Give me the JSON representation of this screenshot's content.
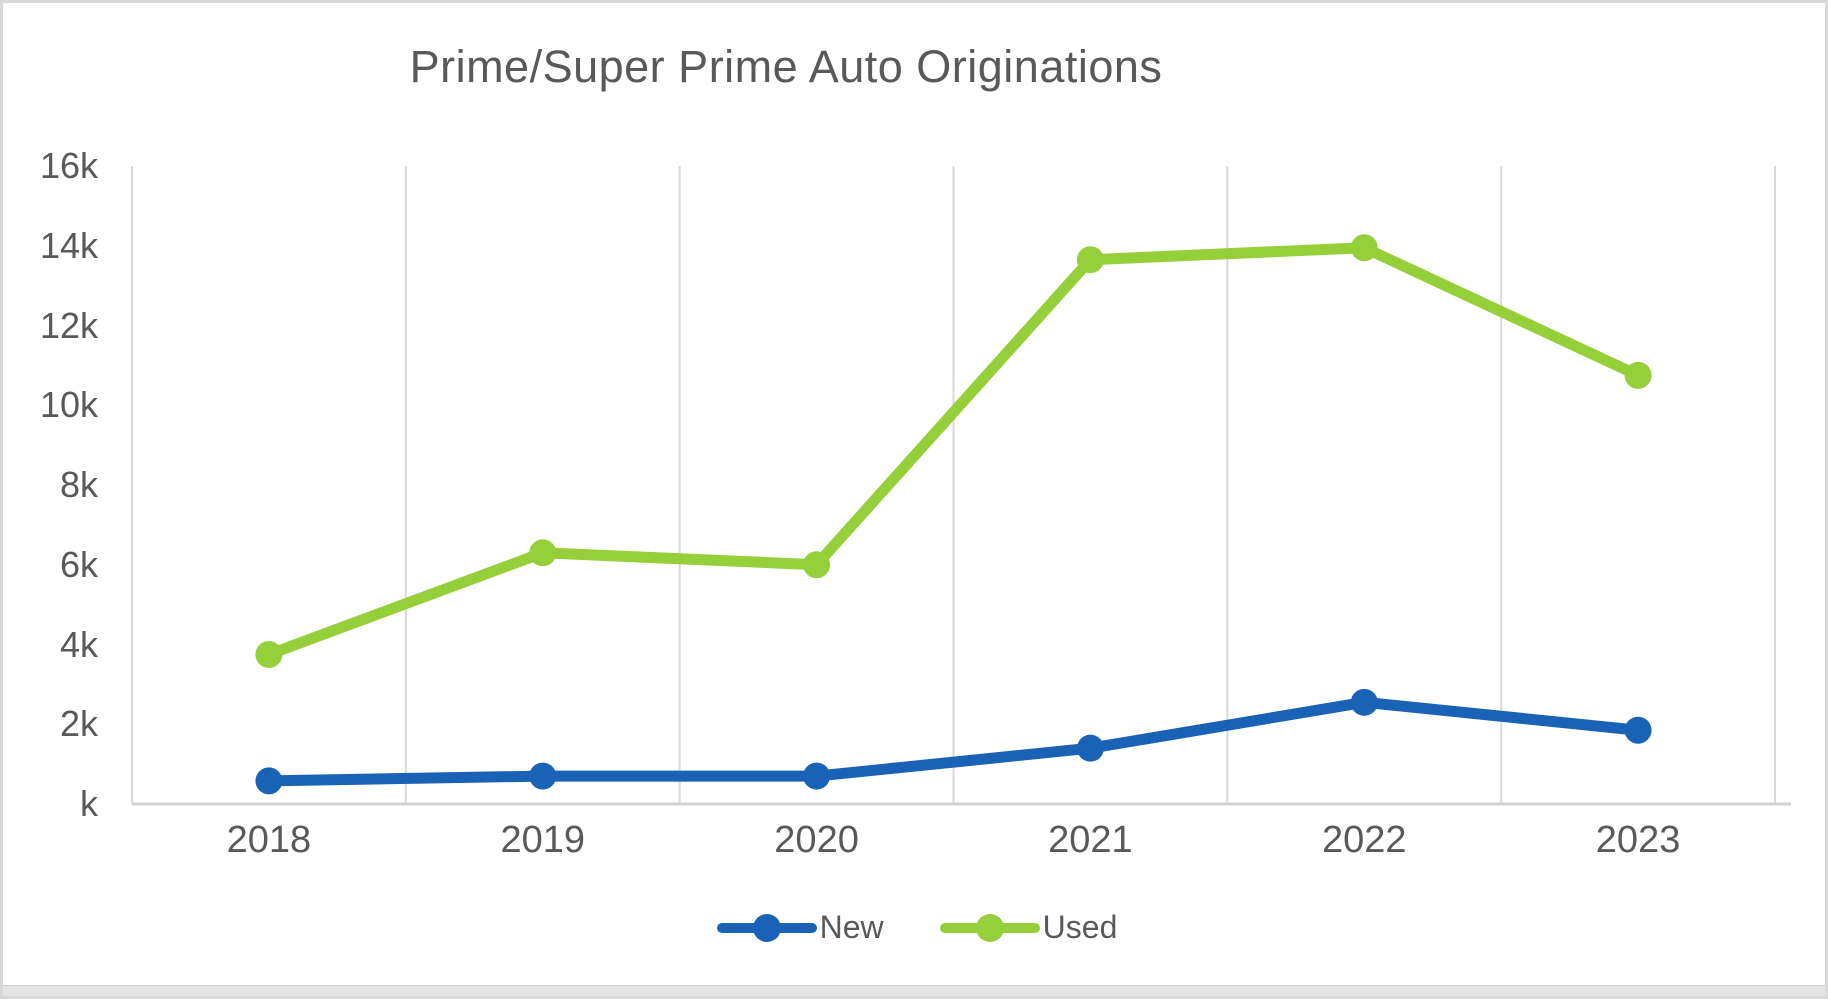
{
  "chart_data": {
    "type": "line",
    "title": "Prime/Super Prime Auto Originations",
    "categories": [
      "2018",
      "2019",
      "2020",
      "2021",
      "2022",
      "2023"
    ],
    "series": [
      {
        "name": "New",
        "color": "#1A62B5",
        "values": [
          580,
          700,
          700,
          1400,
          2550,
          1850
        ]
      },
      {
        "name": "Used",
        "color": "#95CF39",
        "values": [
          3750,
          6300,
          6000,
          13650,
          13950,
          10750
        ]
      }
    ],
    "ylim": [
      0,
      16000
    ],
    "y_tick_step": 2000,
    "y_tick_labels_top_to_bottom": [
      "16k",
      "14k",
      "12k",
      "10k",
      "8k",
      "6k",
      "4k",
      "2k",
      "k"
    ],
    "xlabel": "",
    "ylabel": "",
    "grid": "vertical-only",
    "legend_position": "bottom-center"
  },
  "colors": {
    "text": "#58595b",
    "gridline": "#d9d9d9",
    "axis_line": "#d2d2d2",
    "background": "#ffffff",
    "frame_border": "#d8d8d8"
  }
}
